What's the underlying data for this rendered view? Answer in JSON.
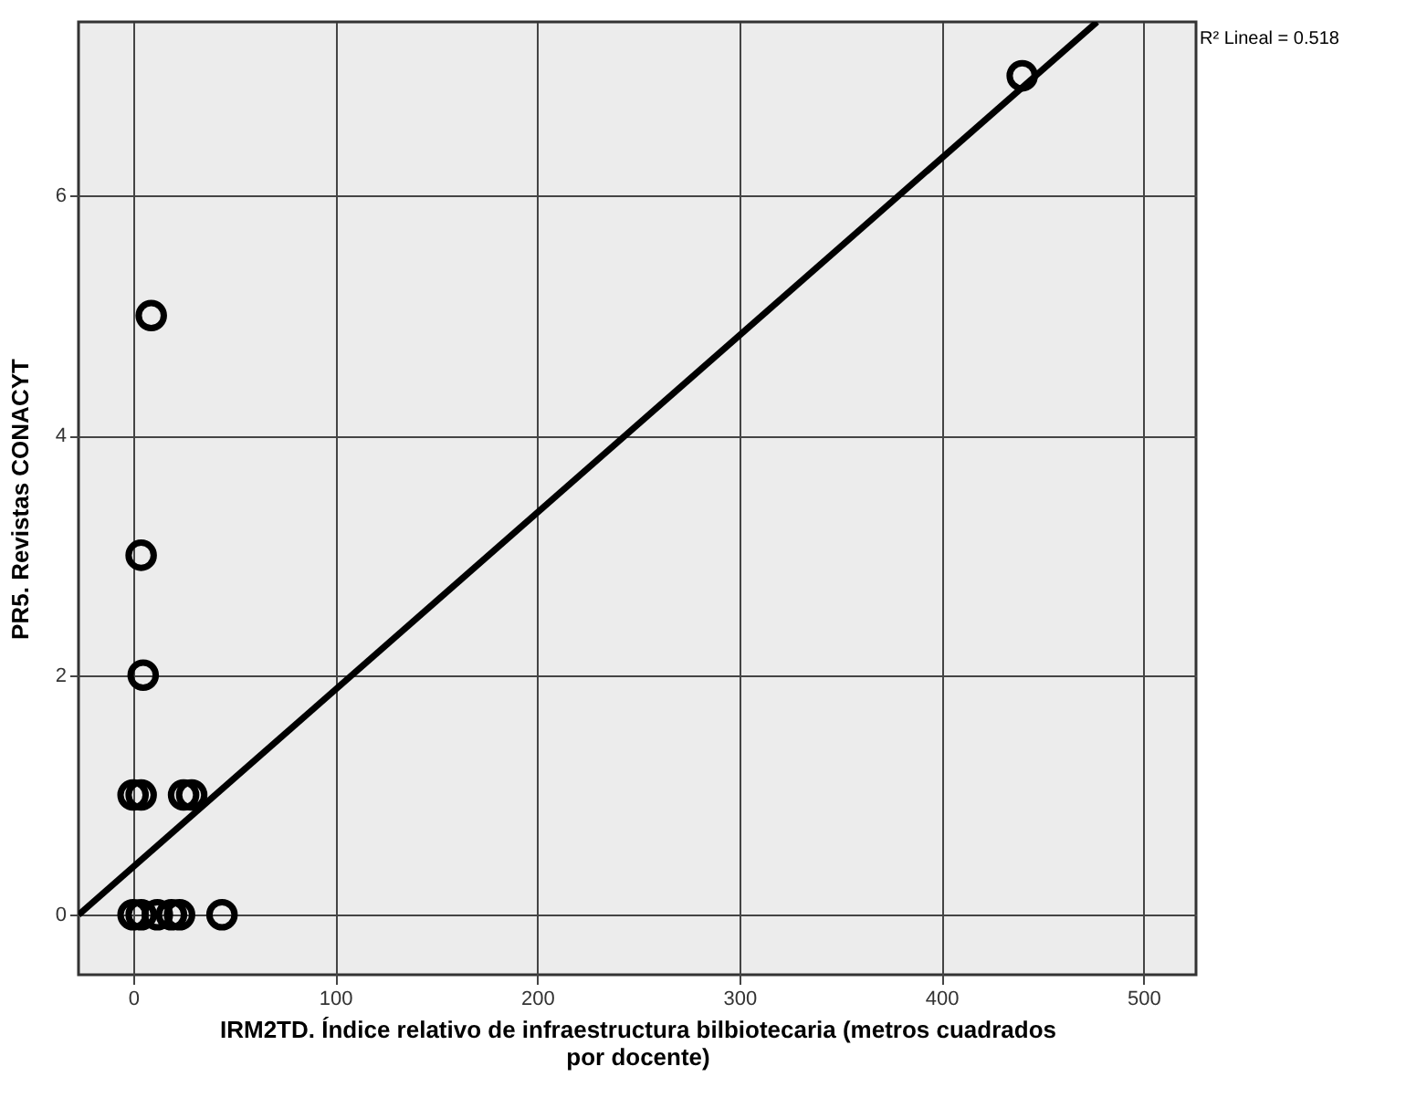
{
  "chart_data": {
    "type": "scatter",
    "xlabel": "IRM2TD. Índice relativo de infraestructura bilbiotecaria (metros cuadrados por docente)",
    "ylabel": "PR5. Revistas CONACYT",
    "series": [
      {
        "color": "#000000",
        "marker": "circle",
        "x": [
          440,
          9,
          4,
          5,
          0,
          4,
          25,
          29,
          0,
          4,
          12,
          19,
          23,
          44
        ],
        "values": [
          7,
          5,
          3,
          2,
          1,
          1,
          1,
          1,
          0,
          0,
          0,
          0,
          0,
          0
        ]
      },
      {
        "type": "line",
        "color": "#000000",
        "line_style": "solid",
        "x": [
          -27,
          477
        ],
        "values": [
          0,
          7.45
        ]
      }
    ],
    "annotations": [
      "R² Lineal = 0.518"
    ],
    "xlim": [
      -27,
      526
    ],
    "ylim": [
      -0.5,
      7.45
    ],
    "xticks": [
      0,
      100,
      200,
      300,
      400,
      500
    ],
    "yticks": [
      0,
      2,
      4,
      6
    ],
    "grid": true
  }
}
